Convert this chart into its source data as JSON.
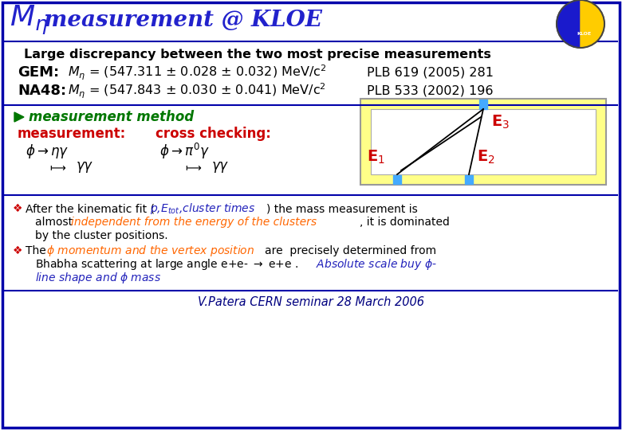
{
  "title_color": "#2222CC",
  "bg_color": "#FFFFFF",
  "border_color": "#0000AA",
  "subtitle": "Large discrepancy between the two most precise measurements",
  "gem_label": "GEM:",
  "gem_formula": "$M_{\\eta}$ = (547.311 ± 0.028 ± 0.032) MeV/c$^2$",
  "gem_ref": "PLB 619 (2005) 281",
  "na48_label": "NA48:",
  "na48_formula": "$M_{\\eta}$ = (547.843 ± 0.030 ± 0.041) MeV/c$^2$",
  "na48_ref": "PLB 533 (2002) 196",
  "meas_method": "measurement method",
  "meas_label": "measurement:",
  "cross_label": "cross checking:",
  "footer": "V.Patera CERN seminar 28 March 2006",
  "diagram_box_color": "#FFFF88",
  "diagram_inner_color": "#FFFFFF",
  "detector_color": "#44AAFF",
  "E_color": "#CC0000",
  "line_color": "#000000",
  "red_label": "#CC0000",
  "green_label": "#007700",
  "blue_text": "#2222BB",
  "orange_text": "#FF6600"
}
